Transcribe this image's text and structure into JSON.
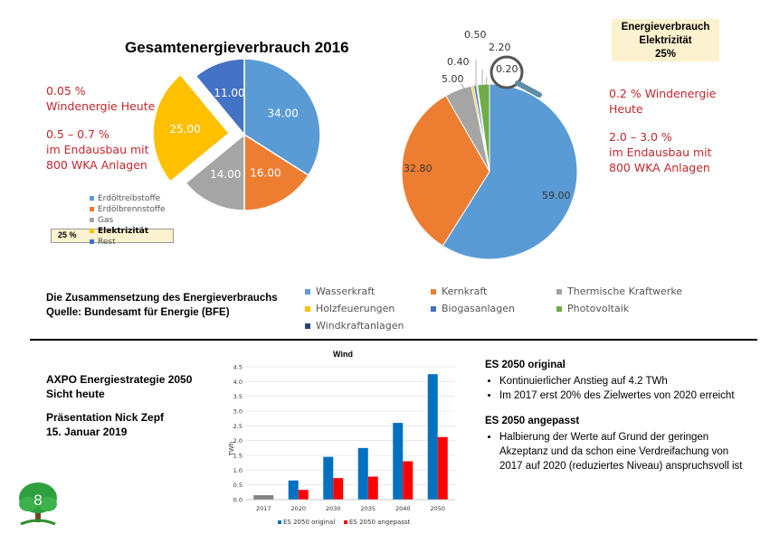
{
  "left_chart": {
    "title": "Gesamtenergieverbrauch 2016",
    "red_note_1": "0.05 %",
    "red_note_2": "Windenergie Heute",
    "red_note_3": "0.5 – 0.7 %",
    "red_note_4": "im Endausbau mit",
    "red_note_5": "800 WKA Anlagen",
    "legend": [
      {
        "label": "Erdöltreibstoffe",
        "color": "#5b9bd5"
      },
      {
        "label": "Erdölbrennstoffe",
        "color": "#ed7d31"
      },
      {
        "label": "Gas",
        "color": "#a5a5a5"
      },
      {
        "label": "Elektrizität",
        "color": "#ffc000"
      },
      {
        "label": "Rest",
        "color": "#4472c4"
      }
    ],
    "highlight_pct": "25 %"
  },
  "right_chart": {
    "box_line1": "Energieverbrauch",
    "box_line2": "Elektrizität",
    "box_line3": "25%",
    "red_note_1": "0.2 % Windenergie",
    "red_note_2": "Heute",
    "red_note_3": "2.0 – 3.0 %",
    "red_note_4": "im Endausbau mit",
    "red_note_5": "800 WKA Anlagen",
    "legend": [
      {
        "label": "Wasserkraft",
        "color": "#5b9bd5"
      },
      {
        "label": "Kernkraft",
        "color": "#ed7d31"
      },
      {
        "label": "Thermische Kraftwerke",
        "color": "#a5a5a5"
      },
      {
        "label": "Holzfeuerungen",
        "color": "#ffc000"
      },
      {
        "label": "Biogasanlagen",
        "color": "#4472c4"
      },
      {
        "label": "Photovoltaik",
        "color": "#70ad47"
      },
      {
        "label": "Windkraftanlagen",
        "color": "#264478"
      }
    ]
  },
  "composition": {
    "line1": "Die Zusammensetzung des Energieverbrauchs",
    "line2": "Quelle: Bundesamt für Energie (BFE)"
  },
  "footer_left": {
    "line1": "AXPO Energiestrategie 2050",
    "line2": "Sicht heute",
    "line3": "Präsentation Nick Zepf",
    "line4": "15. Januar 2019",
    "badge": "8"
  },
  "right_text": {
    "h1": "ES 2050 original",
    "b1": "Kontinuierlicher Anstieg auf 4.2 TWh",
    "b2": "Im 2017 erst 20% des Zielwertes von 2020 erreicht",
    "h2": "ES 2050 angepasst",
    "b3": "Halbierung der Werte auf Grund der geringen Akzeptanz und da schon eine Verdreifachung von 2017 auf 2020 (reduziertes Niveau) anspruchsvoll ist"
  },
  "chart_data": [
    {
      "type": "pie",
      "title": "Gesamtenergieverbrauch 2016",
      "categories": [
        "Erdöltreibstoffe",
        "Erdölbrennstoffe",
        "Gas",
        "Elektrizität",
        "Rest"
      ],
      "values": [
        34.0,
        16.0,
        14.0,
        25.0,
        11.0
      ],
      "labels": [
        "34.00",
        "16.00",
        "14.00",
        "25.00",
        "11.00"
      ],
      "colors": [
        "#5b9bd5",
        "#ed7d31",
        "#a5a5a5",
        "#ffc000",
        "#4472c4"
      ],
      "exploded": "Elektrizität"
    },
    {
      "type": "pie",
      "title": "Energieverbrauch Elektrizität",
      "categories": [
        "Wasserkraft",
        "Kernkraft",
        "Thermische Kraftwerke",
        "Holzfeuerungen",
        "Biogasanlagen",
        "Photovoltaik",
        "Windkraftanlagen"
      ],
      "values": [
        59.0,
        32.8,
        5.0,
        0.4,
        0.5,
        2.2,
        0.2
      ],
      "labels": [
        "59.00",
        "32.80",
        "5.00",
        "0.40",
        "0.50",
        "2.20",
        "0.20"
      ],
      "colors": [
        "#5b9bd5",
        "#ed7d31",
        "#a5a5a5",
        "#ffc000",
        "#4472c4",
        "#70ad47",
        "#264478"
      ]
    },
    {
      "type": "bar",
      "title": "Wind",
      "categories": [
        "2017",
        "2020",
        "2030",
        "2035",
        "2040",
        "2050"
      ],
      "series": [
        {
          "name": "ES 2050 original",
          "values": [
            0.15,
            0.65,
            1.45,
            1.75,
            2.6,
            4.25
          ],
          "color": "#0070c0"
        },
        {
          "name": "ES 2050 angepasst",
          "values": [
            null,
            0.33,
            0.73,
            0.78,
            1.3,
            2.12
          ],
          "color": "#ff0000"
        }
      ],
      "first_bar_color": "#808080",
      "ylabel": "TWh",
      "ylim": [
        0,
        4.5
      ],
      "yticks": [
        "0.0",
        "0.5",
        "1.0",
        "1.5",
        "2.0",
        "2.5",
        "3.0",
        "3.5",
        "4.0",
        "4.5"
      ]
    }
  ]
}
